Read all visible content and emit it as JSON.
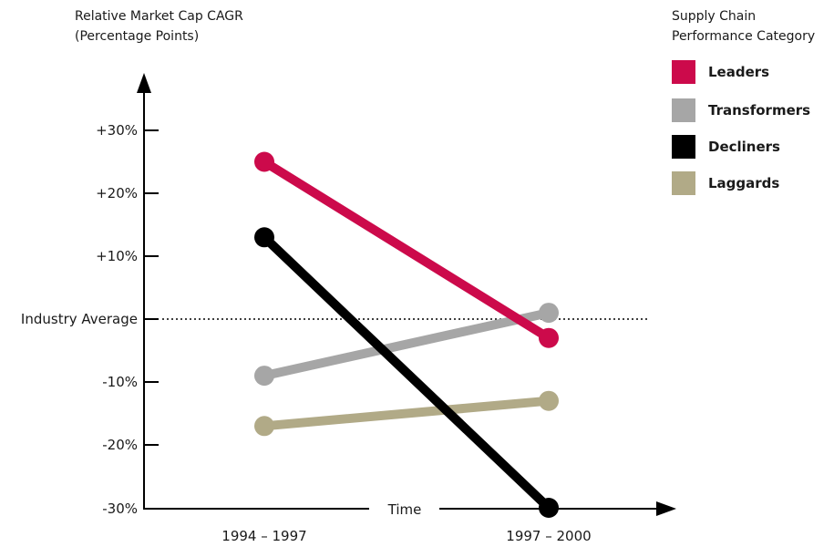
{
  "chart_data": {
    "type": "line",
    "ylabel": [
      "Relative Market Cap CAGR",
      "(Percentage Points)"
    ],
    "xlabel": "Time",
    "categories": [
      "1994 – 1997",
      "1997 – 2000"
    ],
    "yticks": [
      "+30%",
      "+20%",
      "+10%",
      "Industry Average",
      "-10%",
      "-20%",
      "-30%"
    ],
    "ylim": [
      -30,
      30
    ],
    "reference_line": {
      "label": "Industry Average",
      "value": 0
    },
    "legend": {
      "title": [
        "Supply Chain",
        "Performance Category"
      ],
      "position": "top-right"
    },
    "series": [
      {
        "name": "Leaders",
        "color": "#cc0a4b",
        "values": [
          25,
          -3
        ]
      },
      {
        "name": "Transformers",
        "color": "#a6a6a6",
        "values": [
          -9,
          1
        ]
      },
      {
        "name": "Decliners",
        "color": "#000000",
        "values": [
          13,
          -30
        ]
      },
      {
        "name": "Laggards",
        "color": "#b1aa87",
        "values": [
          -17,
          -13
        ]
      }
    ]
  }
}
